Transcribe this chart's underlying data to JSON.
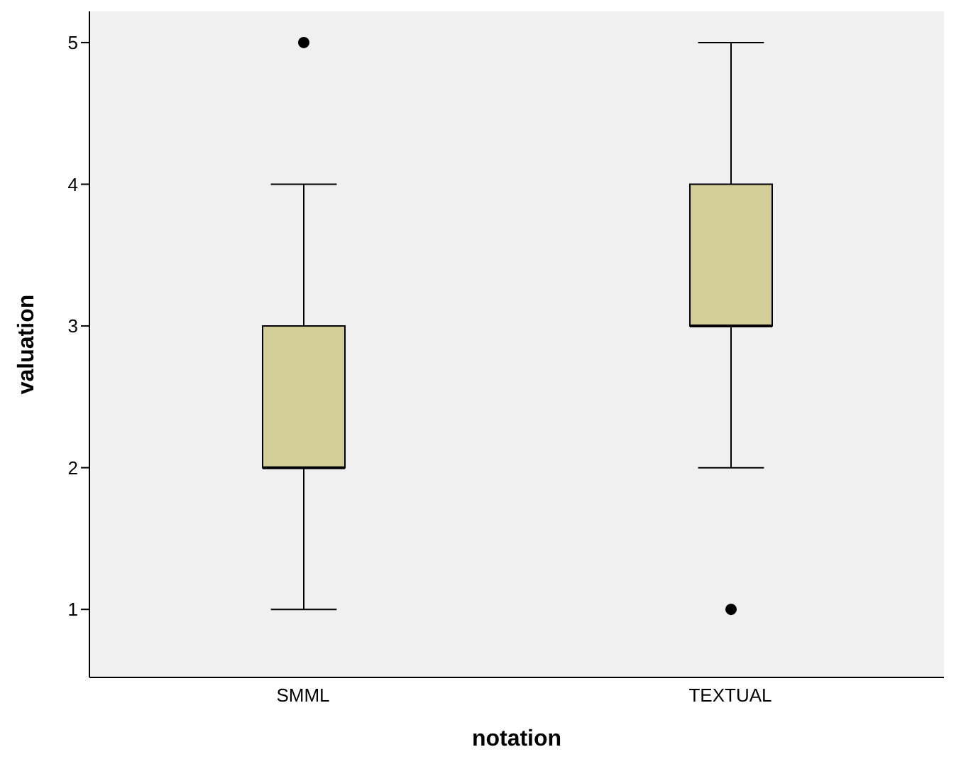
{
  "chart_data": {
    "type": "box",
    "xlabel": "notation",
    "ylabel": "valuation",
    "categories": [
      "SMML",
      "TEXTUAL"
    ],
    "boxes": [
      {
        "low": 1,
        "q1": 2,
        "median": 2,
        "q3": 3,
        "high": 4,
        "outliers": [
          5
        ]
      },
      {
        "low": 2,
        "q1": 3,
        "median": 3,
        "q3": 4,
        "high": 5,
        "outliers": [
          1
        ]
      }
    ],
    "color": "#d3ce98",
    "ylim": [
      0.52,
      5.22
    ],
    "yticks": [
      1,
      2,
      3,
      4,
      5
    ],
    "grid": false
  }
}
